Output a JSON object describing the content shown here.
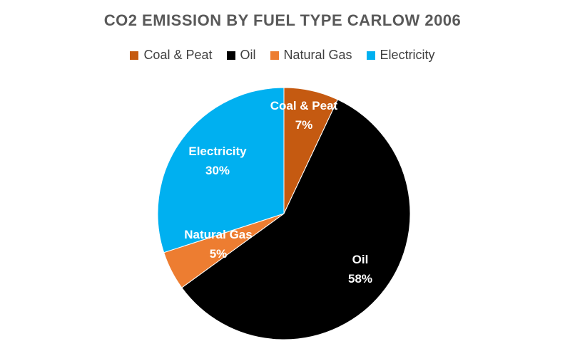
{
  "chart_data": {
    "type": "pie",
    "title": "CO2 EMISSION BY FUEL TYPE CARLOW 2006",
    "legend_position": "top",
    "categories": [
      "Coal & Peat",
      "Oil",
      "Natural Gas",
      "Electricity"
    ],
    "values": [
      7,
      58,
      5,
      30
    ],
    "labels": [
      "7%",
      "58%",
      "5%",
      "30%"
    ],
    "colors": [
      "#c55a11",
      "#000000",
      "#ed7d31",
      "#00b0f0"
    ]
  }
}
